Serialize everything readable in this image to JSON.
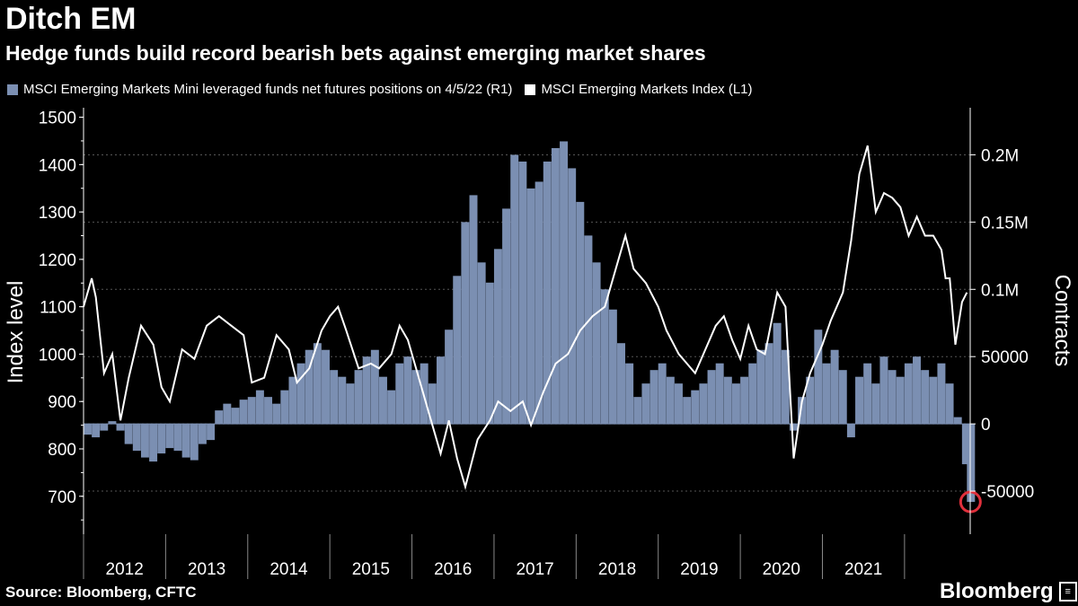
{
  "header": {
    "title": "Ditch EM",
    "subtitle": "Hedge funds build record bearish bets against emerging market shares"
  },
  "footer": {
    "source": "Source: Bloomberg, CFTC",
    "brand": "Bloomberg"
  },
  "chart_data": {
    "type": "bar",
    "title": "Ditch EM",
    "subtitle": "Hedge funds build record bearish bets against emerging market shares",
    "legend": [
      {
        "name": "MSCI Emerging Markets Mini leveraged funds net futures positions on 4/5/22 (R1)",
        "color": "#7b8fb2"
      },
      {
        "name": "MSCI Emerging Markets Index  (L1)",
        "color": "#ffffff"
      }
    ],
    "ylabel_left": "Index level",
    "ylabel_right": "Contracts",
    "ylim_left": [
      620,
      1520
    ],
    "ylim_right": [
      -82000,
      235000
    ],
    "yticks_left": [
      700,
      800,
      900,
      1000,
      1100,
      1200,
      1300,
      1400,
      1500
    ],
    "yticks_right": [
      -50000,
      0,
      50000,
      100000,
      150000,
      200000
    ],
    "yticks_right_labels": [
      "-50000",
      "0",
      "50000",
      "0.1M",
      "0.15M",
      "0.2M"
    ],
    "x_categories": [
      "2012",
      "2013",
      "2014",
      "2015",
      "2016",
      "2017",
      "2018",
      "2019",
      "2020",
      "2021"
    ],
    "xlim": [
      2011.5,
      2022.3
    ],
    "legend_location": "top",
    "grid": true,
    "series": [
      {
        "name": "MSCI Emerging Markets Mini leveraged funds net futures positions on 4/5/22 (R1)",
        "axis": "right",
        "type": "bar",
        "x": [
          2011.5,
          2011.6,
          2011.7,
          2011.8,
          2011.9,
          2012.0,
          2012.1,
          2012.2,
          2012.3,
          2012.4,
          2012.5,
          2012.6,
          2012.7,
          2012.8,
          2012.9,
          2013.0,
          2013.1,
          2013.2,
          2013.3,
          2013.4,
          2013.5,
          2013.6,
          2013.7,
          2013.8,
          2013.9,
          2014.0,
          2014.1,
          2014.2,
          2014.3,
          2014.4,
          2014.5,
          2014.6,
          2014.7,
          2014.8,
          2014.9,
          2015.0,
          2015.1,
          2015.2,
          2015.3,
          2015.4,
          2015.5,
          2015.6,
          2015.7,
          2015.8,
          2015.9,
          2016.0,
          2016.1,
          2016.2,
          2016.3,
          2016.4,
          2016.5,
          2016.6,
          2016.7,
          2016.8,
          2016.9,
          2017.0,
          2017.1,
          2017.2,
          2017.3,
          2017.4,
          2017.5,
          2017.6,
          2017.7,
          2017.8,
          2017.9,
          2018.0,
          2018.1,
          2018.2,
          2018.3,
          2018.4,
          2018.5,
          2018.6,
          2018.7,
          2018.8,
          2018.9,
          2019.0,
          2019.1,
          2019.2,
          2019.3,
          2019.4,
          2019.5,
          2019.6,
          2019.7,
          2019.8,
          2019.9,
          2020.0,
          2020.1,
          2020.2,
          2020.3,
          2020.4,
          2020.5,
          2020.6,
          2020.7,
          2020.8,
          2020.9,
          2021.0,
          2021.1,
          2021.2,
          2021.3,
          2021.4,
          2021.5,
          2021.6,
          2021.7,
          2021.8,
          2021.9,
          2022.0,
          2022.1,
          2022.2,
          2022.26
        ],
        "values": [
          -8000,
          -10000,
          -5000,
          2000,
          -5000,
          -15000,
          -20000,
          -25000,
          -28000,
          -22000,
          -18000,
          -20000,
          -25000,
          -27000,
          -15000,
          -12000,
          10000,
          15000,
          12000,
          18000,
          20000,
          25000,
          20000,
          15000,
          25000,
          35000,
          45000,
          55000,
          60000,
          55000,
          40000,
          35000,
          30000,
          40000,
          50000,
          55000,
          35000,
          25000,
          45000,
          50000,
          40000,
          45000,
          30000,
          50000,
          70000,
          110000,
          150000,
          170000,
          120000,
          105000,
          130000,
          160000,
          200000,
          195000,
          175000,
          180000,
          195000,
          205000,
          210000,
          190000,
          165000,
          140000,
          120000,
          100000,
          85000,
          60000,
          45000,
          20000,
          30000,
          40000,
          45000,
          35000,
          30000,
          20000,
          25000,
          30000,
          40000,
          45000,
          35000,
          30000,
          35000,
          45000,
          55000,
          60000,
          75000,
          55000,
          -5000,
          20000,
          35000,
          70000,
          45000,
          55000,
          40000,
          -10000,
          35000,
          45000,
          30000,
          50000,
          40000,
          35000,
          45000,
          50000,
          40000,
          35000,
          45000,
          30000,
          5000,
          -30000,
          -58000
        ]
      },
      {
        "name": "MSCI Emerging Markets Index  (L1)",
        "axis": "left",
        "type": "line",
        "x": [
          2011.5,
          2011.6,
          2011.65,
          2011.75,
          2011.85,
          2011.95,
          2012.05,
          2012.2,
          2012.35,
          2012.45,
          2012.55,
          2012.7,
          2012.85,
          2013.0,
          2013.15,
          2013.3,
          2013.45,
          2013.55,
          2013.7,
          2013.85,
          2014.0,
          2014.1,
          2014.25,
          2014.4,
          2014.5,
          2014.6,
          2014.7,
          2014.85,
          2015.0,
          2015.1,
          2015.25,
          2015.35,
          2015.45,
          2015.6,
          2015.7,
          2015.85,
          2015.95,
          2016.05,
          2016.15,
          2016.3,
          2016.45,
          2016.55,
          2016.7,
          2016.85,
          2016.95,
          2017.1,
          2017.25,
          2017.4,
          2017.55,
          2017.7,
          2017.85,
          2018.0,
          2018.1,
          2018.2,
          2018.35,
          2018.5,
          2018.6,
          2018.75,
          2018.85,
          2018.95,
          2019.05,
          2019.2,
          2019.3,
          2019.4,
          2019.5,
          2019.6,
          2019.7,
          2019.8,
          2019.95,
          2020.05,
          2020.15,
          2020.25,
          2020.35,
          2020.5,
          2020.6,
          2020.75,
          2020.85,
          2020.95,
          2021.05,
          2021.15,
          2021.25,
          2021.35,
          2021.45,
          2021.55,
          2021.65,
          2021.75,
          2021.85,
          2021.95,
          2022.0,
          2022.05,
          2022.12,
          2022.2,
          2022.26
        ],
        "values": [
          1100,
          1160,
          1120,
          960,
          1000,
          860,
          950,
          1060,
          1020,
          930,
          900,
          1010,
          990,
          1060,
          1080,
          1060,
          1040,
          940,
          950,
          1040,
          1010,
          940,
          970,
          1050,
          1080,
          1100,
          1050,
          970,
          980,
          970,
          1000,
          1060,
          1030,
          940,
          880,
          790,
          860,
          780,
          720,
          820,
          860,
          900,
          880,
          900,
          850,
          920,
          980,
          1000,
          1050,
          1080,
          1100,
          1190,
          1250,
          1180,
          1150,
          1100,
          1050,
          1000,
          980,
          960,
          1000,
          1060,
          1080,
          1030,
          990,
          1060,
          1010,
          1000,
          1130,
          1100,
          780,
          900,
          960,
          1020,
          1070,
          1130,
          1240,
          1380,
          1440,
          1300,
          1340,
          1330,
          1310,
          1250,
          1290,
          1250,
          1250,
          1220,
          1160,
          1160,
          1020,
          1110,
          1130
        ]
      }
    ],
    "annotation": {
      "type": "circle",
      "x": 2022.26,
      "value": -58000,
      "axis": "right",
      "color": "#e0303c"
    }
  }
}
